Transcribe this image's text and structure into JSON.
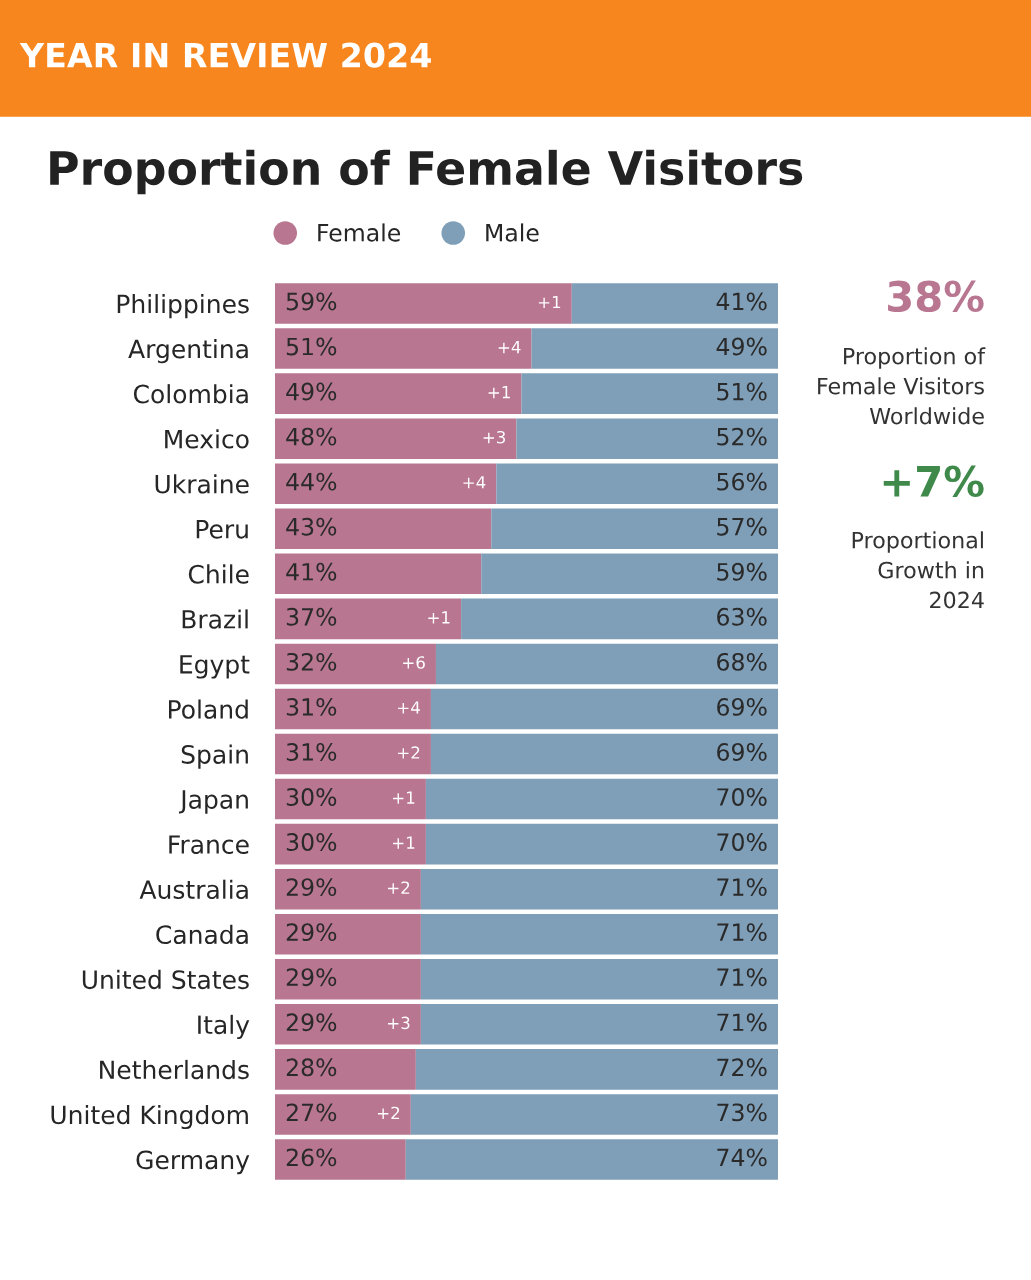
{
  "chart_data": {
    "type": "bar",
    "orientation": "horizontal",
    "stacked": true,
    "title": "Proportion of Female Visitors",
    "categories": [
      "Philippines",
      "Argentina",
      "Colombia",
      "Mexico",
      "Ukraine",
      "Peru",
      "Chile",
      "Brazil",
      "Egypt",
      "Poland",
      "Spain",
      "Japan",
      "France",
      "Australia",
      "Canada",
      "United States",
      "Italy",
      "Netherlands",
      "United Kingdom",
      "Germany"
    ],
    "series": [
      {
        "name": "Female",
        "color": "#b97690",
        "values": [
          59,
          51,
          49,
          48,
          44,
          43,
          41,
          37,
          32,
          31,
          31,
          30,
          30,
          29,
          29,
          29,
          29,
          28,
          27,
          26
        ],
        "value_labels": [
          "59%",
          "51%",
          "49%",
          "48%",
          "44%",
          "43%",
          "41%",
          "37%",
          "32%",
          "31%",
          "31%",
          "30%",
          "30%",
          "29%",
          "29%",
          "29%",
          "29%",
          "28%",
          "27%",
          "26%"
        ]
      },
      {
        "name": "Male",
        "color": "#7f9fb8",
        "values": [
          41,
          49,
          51,
          52,
          56,
          57,
          59,
          63,
          68,
          69,
          69,
          70,
          70,
          71,
          71,
          71,
          71,
          72,
          73,
          74
        ],
        "value_labels": [
          "41%",
          "49%",
          "51%",
          "52%",
          "56%",
          "57%",
          "59%",
          "63%",
          "68%",
          "69%",
          "69%",
          "70%",
          "70%",
          "71%",
          "71%",
          "71%",
          "71%",
          "72%",
          "73%",
          "74%"
        ]
      }
    ],
    "xlim": [
      0,
      100
    ],
    "tick_labels": "y",
    "legend": "top",
    "grid": false,
    "annotations": [
      "YEAR IN REVIEW 2024",
      "38%",
      "Proportion of\nFemale Visitors\nWorldwide",
      "+7%",
      "Proportional\nGrowth in\n2024",
      {
        "text": "+1",
        "x": 59,
        "y": "Philippines"
      },
      {
        "text": "+4",
        "x": 51,
        "y": "Argentina"
      },
      {
        "text": "+1",
        "x": 49,
        "y": "Colombia"
      },
      {
        "text": "+3",
        "x": 48,
        "y": "Mexico"
      },
      {
        "text": "+4",
        "x": 44,
        "y": "Ukraine"
      },
      {
        "text": "+1",
        "x": 37,
        "y": "Brazil"
      },
      {
        "text": "+6",
        "x": 32,
        "y": "Egypt"
      },
      {
        "text": "+4",
        "x": 31,
        "y": "Poland"
      },
      {
        "text": "+2",
        "x": 31,
        "y": "Spain"
      },
      {
        "text": "+1",
        "x": 30,
        "y": "Japan"
      },
      {
        "text": "+1",
        "x": 30,
        "y": "France"
      },
      {
        "text": "+2",
        "x": 29,
        "y": "Australia"
      },
      {
        "text": "+3",
        "x": 29,
        "y": "Italy"
      },
      {
        "text": "+2",
        "x": 27,
        "y": "United Kingdom"
      }
    ]
  }
}
